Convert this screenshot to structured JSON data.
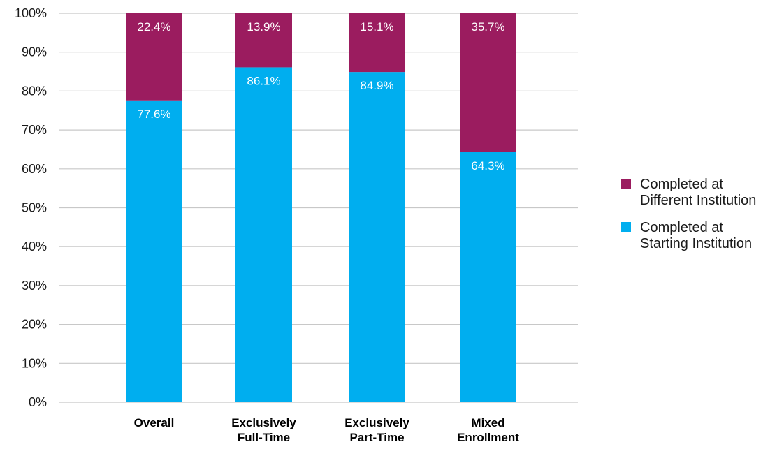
{
  "chart_data": {
    "type": "bar",
    "stacked": true,
    "categories": [
      [
        "Overall"
      ],
      [
        "Exclusively",
        "Full-Time"
      ],
      [
        "Exclusively",
        "Part-Time"
      ],
      [
        "Mixed",
        "Enrollment"
      ]
    ],
    "series": [
      {
        "name": "Completed at Starting Institution",
        "legend_lines": [
          "Completed at",
          "Starting Institution"
        ],
        "color": "#00aeef",
        "values": [
          77.6,
          86.1,
          84.9,
          64.3
        ],
        "labels": [
          "77.6%",
          "86.1%",
          "84.9%",
          "64.3%"
        ]
      },
      {
        "name": "Completed at Different Institution",
        "legend_lines": [
          "Completed at",
          "Different Institution"
        ],
        "color": "#9b1c5f",
        "values": [
          22.4,
          13.9,
          15.1,
          35.7
        ],
        "labels": [
          "22.4%",
          "13.9%",
          "15.1%",
          "35.7%"
        ]
      }
    ],
    "ylim": [
      0,
      100
    ],
    "yticks": [
      0,
      10,
      20,
      30,
      40,
      50,
      60,
      70,
      80,
      90,
      100
    ],
    "ytick_labels": [
      "0%",
      "10%",
      "20%",
      "30%",
      "40%",
      "50%",
      "60%",
      "70%",
      "80%",
      "90%",
      "100%"
    ],
    "grid": true,
    "legend_position": "right",
    "title": "",
    "xlabel": "",
    "ylabel": ""
  }
}
